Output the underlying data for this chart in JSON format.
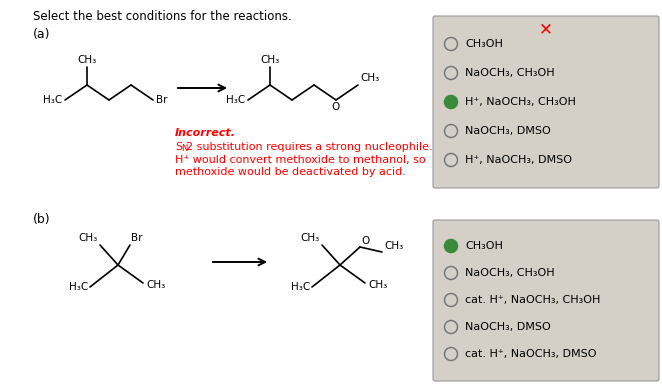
{
  "title": "Select the best conditions for the reactions.",
  "background_color": "#ffffff",
  "box_color": "#d4d0c8",
  "part_a": {
    "label": "(a)",
    "options": [
      {
        "text": "CH₃OH",
        "selected": false
      },
      {
        "text": "NaOCH₃, CH₃OH",
        "selected": false
      },
      {
        "text": "H⁺, NaOCH₃, CH₃OH",
        "selected": true
      },
      {
        "text": "NaOCH₃, DMSO",
        "selected": false
      },
      {
        "text": "H⁺, NaOCH₃, DMSO",
        "selected": false
      }
    ]
  },
  "part_b": {
    "label": "(b)",
    "options": [
      {
        "text": "CH₃OH",
        "selected": true
      },
      {
        "text": "NaOCH₃, CH₃OH",
        "selected": false
      },
      {
        "text": "cat. H⁺, NaOCH₃, CH₃OH",
        "selected": false
      },
      {
        "text": "NaOCH₃, DMSO",
        "selected": false
      },
      {
        "text": "cat. H⁺, NaOCH₃, DMSO",
        "selected": false
      }
    ]
  }
}
